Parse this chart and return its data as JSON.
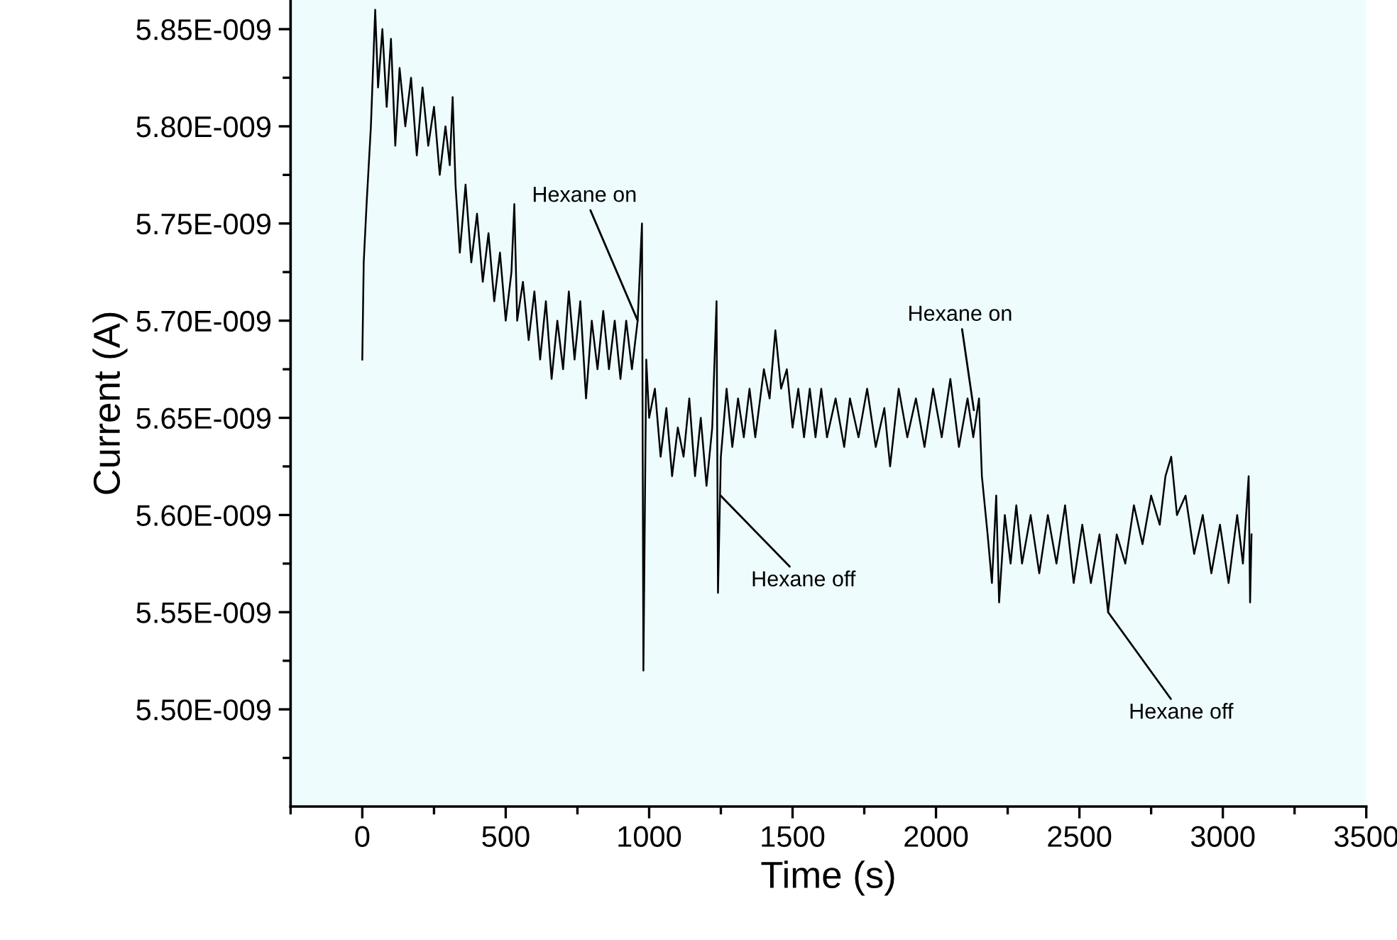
{
  "chart_data": {
    "type": "line",
    "xlabel": "Time (s)",
    "ylabel": "Current (A)",
    "xlim": [
      -250,
      3500
    ],
    "xticks": [
      0,
      500,
      1000,
      1500,
      2000,
      2500,
      3000,
      3500
    ],
    "ylim": [
      5.45e-09,
      5.865e-09
    ],
    "yticks": [
      {
        "value": 5.5e-09,
        "label": "5.50E-009"
      },
      {
        "value": 5.55e-09,
        "label": "5.55E-009"
      },
      {
        "value": 5.6e-09,
        "label": "5.60E-009"
      },
      {
        "value": 5.65e-09,
        "label": "5.65E-009"
      },
      {
        "value": 5.7e-09,
        "label": "5.70E-009"
      },
      {
        "value": 5.75e-09,
        "label": "5.75E-009"
      },
      {
        "value": 5.8e-09,
        "label": "5.80E-009"
      },
      {
        "value": 5.85e-09,
        "label": "5.85E-009"
      }
    ],
    "grid": false,
    "marker": "none",
    "line_style": "solid",
    "annotations": [
      {
        "text": "Hexane on",
        "x": 960,
        "y": 5.7e-09
      },
      {
        "text": "Hexane off",
        "x": 1249,
        "y": 5.61e-09
      },
      {
        "text": "Hexane on",
        "x": 2132,
        "y": 5.654e-09
      },
      {
        "text": "Hexane off",
        "x": 2600,
        "y": 5.55e-09
      }
    ],
    "series": [
      {
        "color": "#000000",
        "x": [
          0,
          5,
          15,
          30,
          45,
          55,
          70,
          85,
          100,
          115,
          130,
          150,
          170,
          190,
          210,
          230,
          250,
          270,
          290,
          305,
          315,
          325,
          340,
          360,
          380,
          400,
          420,
          440,
          460,
          480,
          500,
          520,
          530,
          540,
          560,
          580,
          600,
          620,
          640,
          660,
          680,
          700,
          720,
          740,
          760,
          780,
          800,
          820,
          840,
          860,
          880,
          900,
          920,
          940,
          960,
          975,
          980,
          990,
          1000,
          1020,
          1040,
          1060,
          1080,
          1100,
          1120,
          1140,
          1160,
          1180,
          1200,
          1220,
          1235,
          1240,
          1250,
          1270,
          1290,
          1310,
          1330,
          1350,
          1370,
          1400,
          1420,
          1440,
          1460,
          1480,
          1500,
          1520,
          1540,
          1560,
          1580,
          1600,
          1620,
          1650,
          1680,
          1700,
          1730,
          1760,
          1790,
          1820,
          1840,
          1870,
          1900,
          1930,
          1960,
          1990,
          2020,
          2050,
          2080,
          2110,
          2130,
          2150,
          2160,
          2180,
          2195,
          2210,
          2220,
          2240,
          2260,
          2280,
          2300,
          2330,
          2360,
          2390,
          2420,
          2450,
          2480,
          2510,
          2540,
          2570,
          2600,
          2630,
          2660,
          2690,
          2720,
          2750,
          2780,
          2800,
          2820,
          2840,
          2870,
          2900,
          2930,
          2960,
          2990,
          3020,
          3050,
          3070,
          3090,
          3095,
          3100
        ],
        "values": [
          5.68e-09,
          5.73e-09,
          5.76e-09,
          5.8e-09,
          5.86e-09,
          5.82e-09,
          5.85e-09,
          5.81e-09,
          5.845e-09,
          5.79e-09,
          5.83e-09,
          5.8e-09,
          5.825e-09,
          5.785e-09,
          5.82e-09,
          5.79e-09,
          5.81e-09,
          5.775e-09,
          5.8e-09,
          5.78e-09,
          5.815e-09,
          5.77e-09,
          5.735e-09,
          5.77e-09,
          5.73e-09,
          5.755e-09,
          5.72e-09,
          5.745e-09,
          5.71e-09,
          5.735e-09,
          5.7e-09,
          5.725e-09,
          5.76e-09,
          5.7e-09,
          5.72e-09,
          5.69e-09,
          5.715e-09,
          5.68e-09,
          5.71e-09,
          5.67e-09,
          5.7e-09,
          5.675e-09,
          5.715e-09,
          5.68e-09,
          5.71e-09,
          5.66e-09,
          5.7e-09,
          5.675e-09,
          5.705e-09,
          5.675e-09,
          5.7e-09,
          5.67e-09,
          5.7e-09,
          5.675e-09,
          5.7e-09,
          5.75e-09,
          5.52e-09,
          5.68e-09,
          5.65e-09,
          5.665e-09,
          5.63e-09,
          5.655e-09,
          5.62e-09,
          5.645e-09,
          5.63e-09,
          5.66e-09,
          5.62e-09,
          5.65e-09,
          5.615e-09,
          5.645e-09,
          5.71e-09,
          5.56e-09,
          5.63e-09,
          5.665e-09,
          5.635e-09,
          5.66e-09,
          5.64e-09,
          5.665e-09,
          5.64e-09,
          5.675e-09,
          5.66e-09,
          5.695e-09,
          5.665e-09,
          5.675e-09,
          5.645e-09,
          5.665e-09,
          5.64e-09,
          5.665e-09,
          5.64e-09,
          5.665e-09,
          5.64e-09,
          5.66e-09,
          5.635e-09,
          5.66e-09,
          5.64e-09,
          5.665e-09,
          5.635e-09,
          5.655e-09,
          5.625e-09,
          5.665e-09,
          5.64e-09,
          5.66e-09,
          5.635e-09,
          5.665e-09,
          5.64e-09,
          5.67e-09,
          5.635e-09,
          5.66e-09,
          5.64e-09,
          5.66e-09,
          5.62e-09,
          5.59e-09,
          5.565e-09,
          5.61e-09,
          5.555e-09,
          5.6e-09,
          5.575e-09,
          5.605e-09,
          5.575e-09,
          5.6e-09,
          5.57e-09,
          5.6e-09,
          5.575e-09,
          5.605e-09,
          5.565e-09,
          5.595e-09,
          5.565e-09,
          5.59e-09,
          5.55e-09,
          5.59e-09,
          5.575e-09,
          5.605e-09,
          5.585e-09,
          5.61e-09,
          5.595e-09,
          5.62e-09,
          5.63e-09,
          5.6e-09,
          5.61e-09,
          5.58e-09,
          5.6e-09,
          5.57e-09,
          5.595e-09,
          5.565e-09,
          5.6e-09,
          5.575e-09,
          5.62e-09,
          5.555e-09,
          5.59e-09
        ]
      }
    ]
  }
}
